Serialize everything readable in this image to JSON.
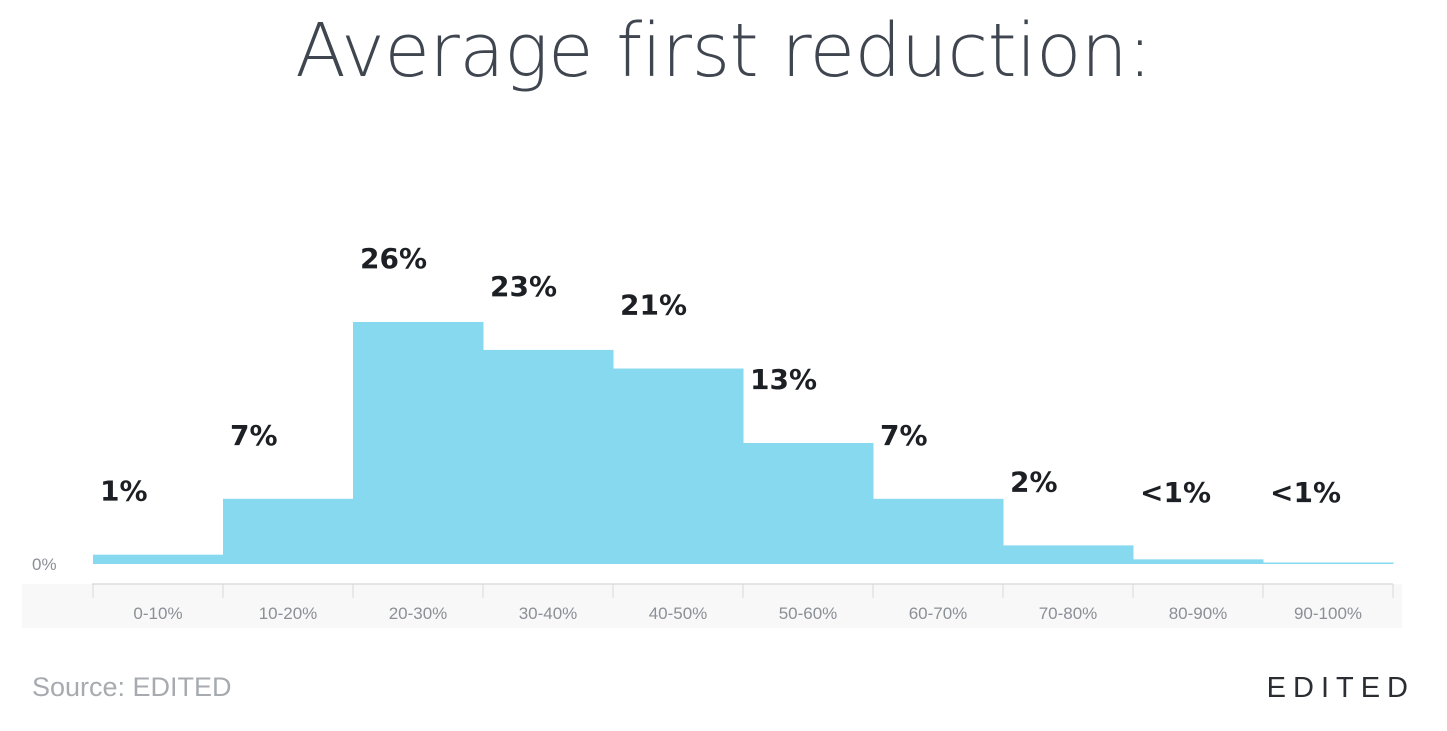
{
  "chart_data": {
    "type": "bar",
    "title": "Average first reduction:",
    "categories": [
      "0-10%",
      "10-20%",
      "20-30%",
      "30-40%",
      "40-50%",
      "50-60%",
      "60-70%",
      "70-80%",
      "80-90%",
      "90-100%"
    ],
    "values": [
      1,
      7,
      26,
      23,
      21,
      13,
      7,
      2,
      0.5,
      0.1
    ],
    "data_labels": [
      "1%",
      "7%",
      "26%",
      "23%",
      "21%",
      "13%",
      "7%",
      "2%",
      "<1%",
      "<1%"
    ],
    "y_tick_label": "0%",
    "ylim": [
      0,
      26
    ],
    "grid": false,
    "bar_color": "#86d9ee"
  },
  "footer": {
    "source": "Source: EDITED",
    "brand": "EDITED"
  }
}
